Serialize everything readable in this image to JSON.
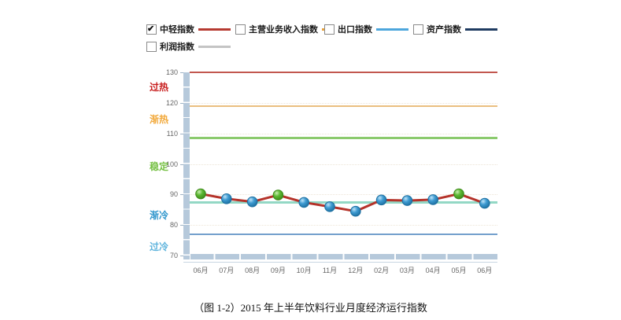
{
  "legend": {
    "items": [
      {
        "label": "中轻指数",
        "checked": true,
        "color": "#b63a31"
      },
      {
        "label": "主营业务收入指数",
        "checked": false,
        "color": "#e9a23b"
      },
      {
        "label": "出口指数",
        "checked": false,
        "color": "#4da6dc"
      },
      {
        "label": "资产指数",
        "checked": false,
        "color": "#1f3b61"
      },
      {
        "label": "利润指数",
        "checked": false,
        "color": "#c4c4c4"
      }
    ]
  },
  "chart_data": {
    "type": "line",
    "categories": [
      "06月",
      "07月",
      "08月",
      "09月",
      "10月",
      "11月",
      "12月",
      "02月",
      "03月",
      "04月",
      "05月",
      "06月"
    ],
    "series": [
      {
        "name": "中轻指数",
        "color": "#b5332a",
        "values": [
          90.2,
          88.6,
          87.6,
          89.8,
          87.4,
          86.0,
          84.5,
          88.2,
          88.0,
          88.3,
          90.2,
          87.1
        ],
        "marker_colors": [
          "green",
          "blue",
          "blue",
          "green",
          "blue",
          "blue",
          "blue",
          "blue",
          "blue",
          "blue",
          "green",
          "blue"
        ]
      }
    ],
    "marker_styles": {
      "green": {
        "light": "#cdeeb4",
        "main": "#5cb832",
        "edge": "#3d8a1a"
      },
      "blue": {
        "light": "#bfe4f9",
        "main": "#3d9ad1",
        "edge": "#1d6fa0"
      }
    },
    "ylim": [
      70,
      130
    ],
    "yticks": [
      70,
      80,
      90,
      100,
      110,
      120,
      130
    ],
    "grid": "faint dotted horizontal lines at 10-unit steps",
    "legend_position": "top",
    "reference_lines": [
      {
        "value": 130,
        "color": "#c2574f",
        "thickness": 2
      },
      {
        "value": 119,
        "color": "#eabf80",
        "thickness": 2
      },
      {
        "value": 108.5,
        "color": "#8bca6d",
        "thickness": 3
      },
      {
        "value": 87.4,
        "color": "#93d8c5",
        "thickness": 3
      },
      {
        "value": 77,
        "color": "#739fcc",
        "thickness": 2
      }
    ],
    "zones": [
      {
        "label": "过热",
        "color": "#c81e1e",
        "center_value": 125.4
      },
      {
        "label": "渐热",
        "color": "#f2a93b",
        "center_value": 114.8
      },
      {
        "label": "稳定",
        "color": "#76c044",
        "center_value": 99.4
      },
      {
        "label": "渐冷",
        "color": "#2f96cc",
        "center_value": 83.4
      },
      {
        "label": "过冷",
        "color": "#5fb4dd",
        "center_value": 73.0
      }
    ]
  },
  "caption": {
    "text": "（图 1-2）2015 年上半年饮料行业月度经济运行指数"
  }
}
